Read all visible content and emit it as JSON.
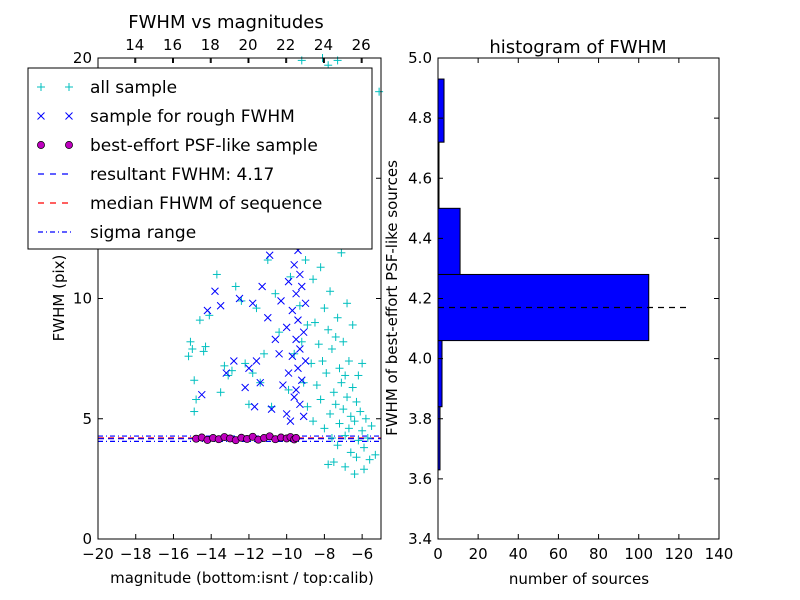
{
  "chart_data": [
    {
      "type": "scatter",
      "title": "FWHM vs magnitudes",
      "xlabel": "magnitude (bottom:isnt / top:calib)",
      "ylabel": "FWHM (pix)",
      "xlim": [
        -20,
        -5
      ],
      "ylim": [
        0,
        20
      ],
      "x_ticks": [
        "−20",
        "−18",
        "−16",
        "−14",
        "−12",
        "−10",
        "−8",
        "−6"
      ],
      "y_ticks": [
        "0",
        "5",
        "10",
        "15",
        "20"
      ],
      "top_ticks": [
        "14",
        "16",
        "18",
        "20",
        "22",
        "24",
        "26"
      ],
      "top_tick_values": [
        -18.05,
        -16.05,
        -14.05,
        -12.05,
        -10.05,
        -8.05,
        -6.05
      ],
      "colors": {
        "all": "#00bfbf",
        "rough": "#0000ff",
        "best_face": "#bf00bf",
        "resultant": "#0000ff",
        "median": "#ff0000",
        "sigma": "#0000ff"
      },
      "legend_position": "upper-left",
      "legend": [
        {
          "label": "all sample",
          "marker": "plus",
          "color": "#00bfbf"
        },
        {
          "label": "sample for rough FWHM",
          "marker": "x",
          "color": "#0000ff"
        },
        {
          "label": "best-effort PSF-like sample",
          "marker": "circle",
          "color": "#bf00bf"
        },
        {
          "label": "resultant FWHM: 4.17",
          "marker": "dashed",
          "color": "#0000ff"
        },
        {
          "label": "median FHWM of sequence",
          "marker": "dashed",
          "color": "#ff0000"
        },
        {
          "label": "sigma range",
          "marker": "dashdot",
          "color": "#0000ff"
        }
      ],
      "resultant_fwhm": 4.17,
      "median_fwhm": 4.2,
      "sigma_range": [
        4.06,
        4.28
      ],
      "series": [
        {
          "name": "all sample",
          "points": [
            [
              -15.2,
              7.6
            ],
            [
              -15.1,
              8.2
            ],
            [
              -15.0,
              7.9
            ],
            [
              -14.9,
              5.3
            ],
            [
              -14.9,
              6.6
            ],
            [
              -14.8,
              5.8
            ],
            [
              -14.6,
              9.1
            ],
            [
              -14.4,
              7.8
            ],
            [
              -14.3,
              8.0
            ],
            [
              -14.1,
              9.3
            ],
            [
              -13.7,
              11.0
            ],
            [
              -13.5,
              6.1
            ],
            [
              -13.3,
              7.2
            ],
            [
              -13.1,
              6.8
            ],
            [
              -12.9,
              7.0
            ],
            [
              -12.7,
              10.5
            ],
            [
              -12.4,
              9.9
            ],
            [
              -12.2,
              7.3
            ],
            [
              -12.0,
              5.6
            ],
            [
              -11.8,
              6.9
            ],
            [
              -11.6,
              9.6
            ],
            [
              -11.4,
              6.5
            ],
            [
              -11.2,
              7.7
            ],
            [
              -11.0,
              11.6
            ],
            [
              -10.8,
              5.5
            ],
            [
              -10.6,
              10.2
            ],
            [
              -10.4,
              8.6
            ],
            [
              -10.2,
              13.6
            ],
            [
              -10.0,
              15.8
            ],
            [
              -9.9,
              6.2
            ],
            [
              -9.8,
              10.9
            ],
            [
              -9.7,
              12.4
            ],
            [
              -9.6,
              7.7
            ],
            [
              -9.5,
              17.8
            ],
            [
              -9.4,
              16.0
            ],
            [
              -9.3,
              9.7
            ],
            [
              -9.2,
              8.2
            ],
            [
              -9.2,
              14.0
            ],
            [
              -9.1,
              6.5
            ],
            [
              -9.0,
              11.6
            ],
            [
              -9.0,
              19.2
            ],
            [
              -8.9,
              8.9
            ],
            [
              -8.9,
              5.5
            ],
            [
              -8.8,
              13.4
            ],
            [
              -8.7,
              7.3
            ],
            [
              -8.6,
              10.8
            ],
            [
              -8.6,
              4.9
            ],
            [
              -8.5,
              12.3
            ],
            [
              -8.5,
              9.0
            ],
            [
              -8.4,
              6.4
            ],
            [
              -8.3,
              16.7
            ],
            [
              -8.3,
              8.1
            ],
            [
              -8.2,
              5.8
            ],
            [
              -8.2,
              11.3
            ],
            [
              -8.1,
              7.4
            ],
            [
              -8.0,
              9.6
            ],
            [
              -8.0,
              4.6
            ],
            [
              -7.9,
              13.0
            ],
            [
              -7.9,
              6.9
            ],
            [
              -7.8,
              8.7
            ],
            [
              -7.8,
              19.7
            ],
            [
              -7.7,
              5.2
            ],
            [
              -7.7,
              10.3
            ],
            [
              -7.6,
              7.9
            ],
            [
              -7.6,
              4.2
            ],
            [
              -7.5,
              6.1
            ],
            [
              -7.5,
              14.8
            ],
            [
              -7.4,
              8.4
            ],
            [
              -7.4,
              5.6
            ],
            [
              -7.3,
              9.2
            ],
            [
              -7.3,
              3.9
            ],
            [
              -7.2,
              7.1
            ],
            [
              -7.2,
              4.8
            ],
            [
              -7.1,
              6.5
            ],
            [
              -7.1,
              11.9
            ],
            [
              -7.0,
              5.4
            ],
            [
              -7.0,
              8.2
            ],
            [
              -6.9,
              4.3
            ],
            [
              -6.9,
              6.8
            ],
            [
              -6.8,
              5.9
            ],
            [
              -6.8,
              9.8
            ],
            [
              -6.7,
              4.6
            ],
            [
              -6.7,
              7.4
            ],
            [
              -6.6,
              5.1
            ],
            [
              -6.6,
              3.6
            ],
            [
              -6.5,
              6.3
            ],
            [
              -6.5,
              8.9
            ],
            [
              -6.4,
              4.9
            ],
            [
              -6.3,
              5.7
            ],
            [
              -6.3,
              3.4
            ],
            [
              -6.2,
              6.8
            ],
            [
              -6.2,
              4.1
            ],
            [
              -6.1,
              5.3
            ],
            [
              -6.0,
              4.5
            ],
            [
              -6.0,
              7.3
            ],
            [
              -5.9,
              3.8
            ],
            [
              -5.8,
              5.0
            ],
            [
              -5.7,
              4.2
            ],
            [
              -5.6,
              3.3
            ],
            [
              -5.5,
              4.7
            ],
            [
              -5.3,
              3.5
            ],
            [
              -5.1,
              18.6
            ],
            [
              -7.3,
              19.9
            ],
            [
              -8.1,
              20.0
            ],
            [
              -9.2,
              19.9
            ],
            [
              -7.8,
              3.1
            ],
            [
              -6.9,
              3.0
            ],
            [
              -5.9,
              2.9
            ],
            [
              -6.4,
              2.7
            ],
            [
              -7.5,
              3.2
            ]
          ]
        },
        {
          "name": "sample for rough FWHM",
          "points": [
            [
              -14.5,
              6.0
            ],
            [
              -14.2,
              9.5
            ],
            [
              -13.8,
              10.3
            ],
            [
              -13.5,
              9.7
            ],
            [
              -13.2,
              6.9
            ],
            [
              -12.8,
              7.4
            ],
            [
              -12.5,
              10.0
            ],
            [
              -12.2,
              6.3
            ],
            [
              -12.0,
              7.1
            ],
            [
              -11.8,
              9.8
            ],
            [
              -11.7,
              5.5
            ],
            [
              -11.6,
              7.4
            ],
            [
              -11.4,
              6.5
            ],
            [
              -11.3,
              10.5
            ],
            [
              -11.0,
              9.2
            ],
            [
              -10.9,
              11.8
            ],
            [
              -10.8,
              5.4
            ],
            [
              -10.6,
              8.3
            ],
            [
              -10.4,
              7.7
            ],
            [
              -10.3,
              9.9
            ],
            [
              -10.2,
              6.4
            ],
            [
              -10.1,
              12.2
            ],
            [
              -10.0,
              5.2
            ],
            [
              -10.0,
              8.8
            ],
            [
              -9.9,
              10.7
            ],
            [
              -9.9,
              6.9
            ],
            [
              -9.8,
              12.8
            ],
            [
              -9.8,
              4.9
            ],
            [
              -9.7,
              9.5
            ],
            [
              -9.7,
              7.6
            ],
            [
              -9.6,
              11.4
            ],
            [
              -9.6,
              5.9
            ],
            [
              -9.6,
              13.3
            ],
            [
              -9.5,
              8.3
            ],
            [
              -9.5,
              10.2
            ],
            [
              -9.5,
              6.2
            ],
            [
              -9.4,
              12.0
            ],
            [
              -9.4,
              7.1
            ],
            [
              -9.4,
              9.1
            ],
            [
              -9.3,
              5.6
            ],
            [
              -9.3,
              11.0
            ],
            [
              -9.3,
              7.9
            ],
            [
              -9.2,
              13.9
            ],
            [
              -9.2,
              6.6
            ],
            [
              -9.2,
              10.5
            ],
            [
              -9.1,
              8.6
            ],
            [
              -9.1,
              5.1
            ],
            [
              -9.1,
              12.5
            ],
            [
              -9.0,
              7.4
            ],
            [
              -9.0,
              9.8
            ]
          ]
        },
        {
          "name": "best-effort PSF-like sample",
          "points": [
            [
              -14.8,
              4.17
            ],
            [
              -14.5,
              4.22
            ],
            [
              -14.2,
              4.12
            ],
            [
              -13.9,
              4.2
            ],
            [
              -13.6,
              4.15
            ],
            [
              -13.3,
              4.24
            ],
            [
              -13.0,
              4.18
            ],
            [
              -12.7,
              4.11
            ],
            [
              -12.4,
              4.21
            ],
            [
              -12.1,
              4.16
            ],
            [
              -11.8,
              4.25
            ],
            [
              -11.5,
              4.13
            ],
            [
              -11.2,
              4.2
            ],
            [
              -10.9,
              4.27
            ],
            [
              -10.6,
              4.15
            ],
            [
              -10.3,
              4.22
            ],
            [
              -10.0,
              4.18
            ],
            [
              -9.8,
              4.24
            ],
            [
              -9.6,
              4.14
            ],
            [
              -9.5,
              4.2
            ]
          ]
        }
      ]
    },
    {
      "type": "bar",
      "orientation": "horizontal",
      "title": "histogram of FWHM",
      "xlabel": "number of sources",
      "ylabel": "FWHM of best-effort PSF-like sources",
      "xlim": [
        0,
        140
      ],
      "ylim": [
        3.4,
        5.0
      ],
      "x_ticks": [
        "0",
        "20",
        "40",
        "60",
        "80",
        "100",
        "120",
        "140"
      ],
      "y_ticks": [
        "3.4",
        "3.6",
        "3.8",
        "4.0",
        "4.2",
        "4.4",
        "4.6",
        "4.8",
        "5.0"
      ],
      "bar_color": "#0000ff",
      "bins": [
        {
          "from": 3.63,
          "to": 3.84,
          "count": 1
        },
        {
          "from": 3.84,
          "to": 4.06,
          "count": 2
        },
        {
          "from": 4.06,
          "to": 4.28,
          "count": 105
        },
        {
          "from": 4.28,
          "to": 4.5,
          "count": 11
        },
        {
          "from": 4.5,
          "to": 4.72,
          "count": 0
        },
        {
          "from": 4.72,
          "to": 4.93,
          "count": 3
        }
      ],
      "resultant_fwhm": 4.17,
      "reference_line_xmax": 125
    }
  ]
}
